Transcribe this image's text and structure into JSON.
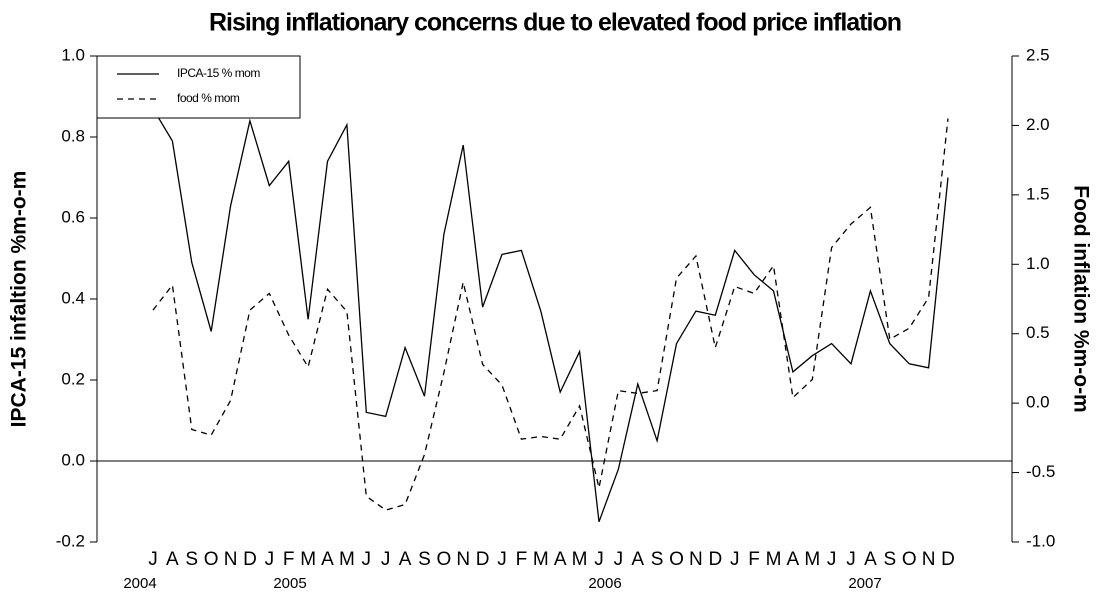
{
  "chart_data": {
    "type": "line",
    "title": "Rising inflationary concerns due to elevated food price inflation",
    "y_label": "IPCA-15 infaltion %m-o-m",
    "y2_label": "Food inflation %m-o-m",
    "categories": [
      "J",
      "A",
      "S",
      "O",
      "N",
      "D",
      "J",
      "F",
      "M",
      "A",
      "M",
      "J",
      "J",
      "A",
      "S",
      "O",
      "N",
      "D",
      "J",
      "F",
      "M",
      "A",
      "M",
      "J",
      "J",
      "A",
      "S",
      "O",
      "N",
      "D",
      "J",
      "F",
      "M",
      "A",
      "M",
      "J",
      "J",
      "A",
      "S",
      "O",
      "N",
      "D"
    ],
    "x_group_labels": [
      "2004",
      "2005",
      "2006",
      "2007"
    ],
    "series": [
      {
        "name": "IPCA-15 % mom",
        "color": "#000000",
        "dash": "solid",
        "values": [
          0.87,
          0.79,
          0.49,
          0.32,
          0.63,
          0.84,
          0.68,
          0.74,
          0.35,
          0.74,
          0.83,
          0.12,
          0.11,
          0.28,
          0.16,
          0.56,
          0.78,
          0.38,
          0.51,
          0.52,
          0.37,
          0.17,
          0.27,
          -0.15,
          -0.02,
          0.19,
          0.05,
          0.29,
          0.37,
          0.36,
          0.52,
          0.46,
          0.42,
          0.22,
          0.26,
          0.29,
          0.24,
          0.42,
          0.29,
          0.24,
          0.23,
          0.7
        ]
      },
      {
        "name": "food % mom",
        "color": "#000000",
        "dash": "dashed",
        "axis": "y2",
        "values": [
          0.67,
          0.85,
          -0.19,
          -0.23,
          0.02,
          0.67,
          0.79,
          0.49,
          0.26,
          0.82,
          0.66,
          -0.67,
          -0.77,
          -0.73,
          -0.37,
          0.22,
          0.87,
          0.28,
          0.13,
          -0.26,
          -0.24,
          -0.26,
          -0.02,
          -0.61,
          0.09,
          0.07,
          0.09,
          0.9,
          1.06,
          0.4,
          0.84,
          0.79,
          0.99,
          0.04,
          0.17,
          1.12,
          1.29,
          1.41,
          0.46,
          0.54,
          0.76,
          2.05
        ]
      }
    ],
    "ylim": [
      -0.2,
      1.0
    ],
    "yticks": [
      {
        "value": -0.2,
        "label": "-0.2"
      },
      {
        "value": 0,
        "label": "0.0"
      },
      0.2,
      0.4,
      0.6,
      0.8,
      {
        "value": 1,
        "label": "1.0"
      }
    ],
    "y2lim": [
      -1.0,
      2.5
    ],
    "y2ticks": [
      {
        "value": -1,
        "label": "-1.0"
      },
      -0.5,
      {
        "value": 0,
        "label": "0.0"
      },
      0.5,
      {
        "value": 1,
        "label": "1.0"
      },
      1.5,
      {
        "value": 2,
        "label": "2.0"
      },
      2.5
    ],
    "reference_line": 0,
    "legend": "top-left"
  }
}
